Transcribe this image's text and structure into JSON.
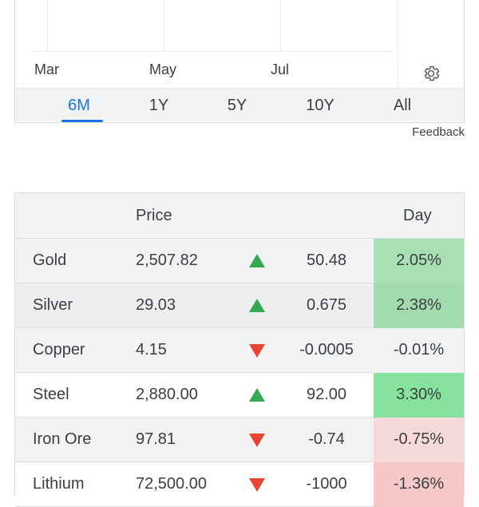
{
  "chart": {
    "x_labels": [
      "Mar",
      "May",
      "Jul"
    ],
    "settings_icon": "gear-icon"
  },
  "ranges": [
    {
      "label": "6M",
      "active": true
    },
    {
      "label": "1Y",
      "active": false
    },
    {
      "label": "5Y",
      "active": false
    },
    {
      "label": "10Y",
      "active": false
    },
    {
      "label": "All",
      "active": false
    }
  ],
  "feedback_label": "Feedback",
  "table": {
    "headers": {
      "name": "",
      "price": "Price",
      "day": "Day"
    },
    "rows": [
      {
        "name": "Gold",
        "price": "2,507.82",
        "direction": "up",
        "change": "50.48",
        "pct": "2.05%",
        "bg": "#f1f3f4",
        "pct_bg": "#a8e0b4"
      },
      {
        "name": "Silver",
        "price": "29.03",
        "direction": "up",
        "change": "0.675",
        "pct": "2.38%",
        "bg": "#eceeef",
        "pct_bg": "#a2dcae"
      },
      {
        "name": "Copper",
        "price": "4.15",
        "direction": "down",
        "change": "-0.0005",
        "pct": "-0.01%",
        "bg": "#f1f3f4",
        "pct_bg": "#f1f3f4"
      },
      {
        "name": "Steel",
        "price": "2,880.00",
        "direction": "up",
        "change": "92.00",
        "pct": "3.30%",
        "bg": "#ffffff",
        "pct_bg": "#86e29c"
      },
      {
        "name": "Iron Ore",
        "price": "97.81",
        "direction": "down",
        "change": "-0.74",
        "pct": "-0.75%",
        "bg": "#f3f1f1",
        "pct_bg": "#f6dada"
      },
      {
        "name": "Lithium",
        "price": "72,500.00",
        "direction": "down",
        "change": "-1000",
        "pct": "-1.36%",
        "bg": "#ffffff",
        "pct_bg": "#f6c8c8"
      }
    ]
  },
  "colors": {
    "accent": "#1a73e8",
    "up": "#34a853",
    "down": "#ea4335"
  }
}
